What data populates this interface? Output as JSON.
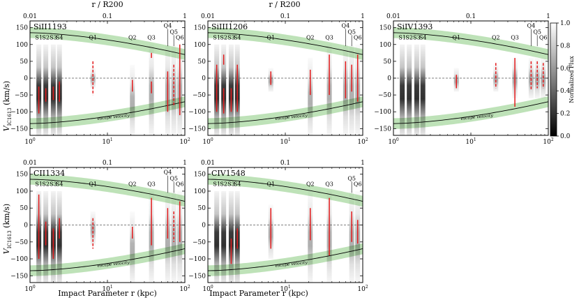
{
  "figure": {
    "y_label_main": "V",
    "y_label_sub": "IC1613",
    "y_label_unit": " (km/s)",
    "x_label": "Impact Parameter r (kpc)",
    "top_axis_label": "r / R200",
    "colorbar_label": "Normalized Flux",
    "escape_label": "escape velocity",
    "colors": {
      "escape_band": "#a8d8a0",
      "curve": "#000000",
      "detection": "#e31a1c",
      "zero_line": "#555555"
    }
  },
  "chart_data": [
    {
      "type": "scatter",
      "title": "SiII1193",
      "xscale": "log",
      "xlim": [
        1,
        100
      ],
      "ylim": [
        -170,
        170
      ],
      "xticks": [
        1,
        10,
        100
      ],
      "xtick_labels": [
        "10^0",
        "10^1",
        "10^2"
      ],
      "yticks": [
        -150,
        -100,
        -50,
        0,
        50,
        100,
        150
      ],
      "top_xticks": [
        0.01,
        0.1,
        1
      ],
      "sightlines": [
        {
          "label": "S1",
          "r": 1.3,
          "v_shade": [
            -170,
            100
          ]
        },
        {
          "label": "S2",
          "r": 1.6,
          "v_shade": [
            -170,
            100
          ]
        },
        {
          "label": "S3",
          "r": 2.0,
          "v_shade": [
            -170,
            100
          ]
        },
        {
          "label": "S4",
          "r": 2.4,
          "v_shade": [
            -170,
            100
          ]
        },
        {
          "label": "Q1",
          "r": 6.5,
          "v_shade": [
            -30,
            30
          ]
        },
        {
          "label": "Q2",
          "r": 21,
          "v_shade": [
            -170,
            40
          ]
        },
        {
          "label": "Q3",
          "r": 37,
          "v_shade": [
            -170,
            100
          ]
        },
        {
          "label": "Q4",
          "r": 60,
          "v_shade": [
            -170,
            100
          ]
        },
        {
          "label": "Q5",
          "r": 72,
          "v_shade": [
            -170,
            100
          ]
        },
        {
          "label": "Q6",
          "r": 86,
          "v_shade": [
            -170,
            100
          ]
        }
      ],
      "detections": [
        {
          "label": "S1",
          "r": 1.3,
          "v": [
            -105,
            -25
          ],
          "style": "solid"
        },
        {
          "label": "S2",
          "r": 1.6,
          "v": [
            -70,
            -30
          ],
          "style": "solid"
        },
        {
          "label": "S3",
          "r": 2.0,
          "v": [
            -65,
            -25
          ],
          "style": "solid"
        },
        {
          "label": "S4",
          "r": 2.4,
          "v": [
            -70,
            -10
          ],
          "style": "solid"
        },
        {
          "label": "Q1",
          "r": 6.5,
          "v": [
            -50,
            50
          ],
          "style": "dashed"
        },
        {
          "label": "Q2",
          "r": 21,
          "v": [
            -40,
            -5
          ],
          "style": "solid"
        },
        {
          "label": "Q3",
          "r": 37,
          "v": [
            -45,
            -10
          ],
          "style": "solid"
        },
        {
          "label": "Q3",
          "r": 37,
          "v": [
            60,
            75
          ],
          "style": "solid"
        },
        {
          "label": "Q4",
          "r": 60,
          "v": [
            -100,
            20
          ],
          "style": "solid"
        },
        {
          "label": "Q5",
          "r": 72,
          "v": [
            -80,
            40
          ],
          "style": "dashed"
        },
        {
          "label": "Q6",
          "r": 86,
          "v": [
            -110,
            100
          ],
          "style": "solid"
        }
      ]
    },
    {
      "type": "scatter",
      "title": "SiIII1206",
      "xscale": "log",
      "xlim": [
        1,
        100
      ],
      "ylim": [
        -170,
        170
      ],
      "xticks": [
        1,
        10,
        100
      ],
      "xtick_labels": [
        "10^0",
        "10^1",
        "10^2"
      ],
      "yticks": [
        -150,
        -100,
        -50,
        0,
        50,
        100,
        150
      ],
      "top_xticks": [
        0.01,
        0.1,
        1
      ],
      "sightlines": [
        {
          "label": "S1",
          "r": 1.3,
          "v_shade": [
            -170,
            100
          ]
        },
        {
          "label": "S2",
          "r": 1.6,
          "v_shade": [
            -170,
            100
          ]
        },
        {
          "label": "S3",
          "r": 2.0,
          "v_shade": [
            -170,
            100
          ]
        },
        {
          "label": "S4",
          "r": 2.4,
          "v_shade": [
            -170,
            100
          ]
        },
        {
          "label": "Q1",
          "r": 6.5,
          "v_shade": [
            -40,
            30
          ]
        },
        {
          "label": "Q2",
          "r": 21,
          "v_shade": [
            -170,
            60
          ]
        },
        {
          "label": "Q3",
          "r": 37,
          "v_shade": [
            -170,
            100
          ]
        },
        {
          "label": "Q4",
          "r": 60,
          "v_shade": [
            -170,
            100
          ]
        },
        {
          "label": "Q5",
          "r": 72,
          "v_shade": [
            -170,
            100
          ]
        },
        {
          "label": "Q6",
          "r": 86,
          "v_shade": [
            -170,
            100
          ]
        }
      ],
      "detections": [
        {
          "label": "S1",
          "r": 1.3,
          "v": [
            -100,
            40
          ],
          "style": "solid"
        },
        {
          "label": "S2",
          "r": 1.6,
          "v": [
            40,
            70
          ],
          "style": "solid"
        },
        {
          "label": "S2",
          "r": 1.6,
          "v": [
            -105,
            -30
          ],
          "style": "solid"
        },
        {
          "label": "S3",
          "r": 2.0,
          "v": [
            -100,
            -30
          ],
          "style": "solid"
        },
        {
          "label": "S4",
          "r": 2.4,
          "v": [
            -100,
            40
          ],
          "style": "solid"
        },
        {
          "label": "Q1",
          "r": 6.5,
          "v": [
            -20,
            20
          ],
          "style": "solid"
        },
        {
          "label": "Q2",
          "r": 21,
          "v": [
            -50,
            25
          ],
          "style": "solid"
        },
        {
          "label": "Q3",
          "r": 37,
          "v": [
            -50,
            70
          ],
          "style": "solid"
        },
        {
          "label": "Q4",
          "r": 60,
          "v": [
            -60,
            50
          ],
          "style": "solid"
        },
        {
          "label": "Q5",
          "r": 72,
          "v": [
            -40,
            40
          ],
          "style": "solid"
        },
        {
          "label": "Q6",
          "r": 86,
          "v": [
            -70,
            70
          ],
          "style": "solid"
        }
      ]
    },
    {
      "type": "scatter",
      "title": "SiIV1393",
      "xscale": "log",
      "xlim": [
        1,
        100
      ],
      "ylim": [
        -170,
        170
      ],
      "xticks": [
        1,
        10,
        100
      ],
      "xtick_labels": [
        "10^0",
        "10^1",
        "10^2"
      ],
      "yticks": [
        -150,
        -100,
        -50,
        0,
        50,
        100,
        150
      ],
      "top_xticks": [
        0.01,
        0.1,
        1
      ],
      "sightlines": [
        {
          "label": "S1",
          "r": 1.3,
          "v_shade": [
            -170,
            100
          ]
        },
        {
          "label": "S2",
          "r": 1.6,
          "v_shade": [
            -170,
            100
          ]
        },
        {
          "label": "S3",
          "r": 2.0,
          "v_shade": [
            -170,
            100
          ]
        },
        {
          "label": "S4",
          "r": 2.4,
          "v_shade": [
            -170,
            100
          ]
        },
        {
          "label": "Q1",
          "r": 6.5,
          "v_shade": [
            -40,
            30
          ]
        },
        {
          "label": "Q2",
          "r": 21,
          "v_shade": [
            -40,
            40
          ]
        },
        {
          "label": "Q3",
          "r": 37,
          "v_shade": [
            -60,
            60
          ]
        },
        {
          "label": "Q4",
          "r": 60,
          "v_shade": [
            -60,
            60
          ]
        },
        {
          "label": "Q5",
          "r": 72,
          "v_shade": [
            -60,
            60
          ]
        },
        {
          "label": "Q6",
          "r": 86,
          "v_shade": [
            -60,
            60
          ]
        }
      ],
      "detections": [
        {
          "label": "Q1",
          "r": 6.5,
          "v": [
            -30,
            10
          ],
          "style": "solid"
        },
        {
          "label": "Q2",
          "r": 21,
          "v": [
            -30,
            45
          ],
          "style": "dashed"
        },
        {
          "label": "Q3",
          "r": 37,
          "v": [
            -85,
            60
          ],
          "style": "solid"
        },
        {
          "label": "Q4",
          "r": 60,
          "v": [
            -35,
            50
          ],
          "style": "dashed"
        },
        {
          "label": "Q5",
          "r": 72,
          "v": [
            -30,
            50
          ],
          "style": "dashed"
        },
        {
          "label": "Q6",
          "r": 86,
          "v": [
            -30,
            45
          ],
          "style": "dashed"
        }
      ]
    },
    {
      "type": "scatter",
      "title": "CII1334",
      "xscale": "log",
      "xlim": [
        1,
        100
      ],
      "ylim": [
        -170,
        170
      ],
      "xticks": [
        1,
        10,
        100
      ],
      "xtick_labels": [
        "10^0",
        "10^1",
        "10^2"
      ],
      "yticks": [
        -150,
        -100,
        -50,
        0,
        50,
        100,
        150
      ],
      "top_xticks": [
        0.01,
        0.1,
        1
      ],
      "sightlines": [
        {
          "label": "S1",
          "r": 1.3,
          "v_shade": [
            -170,
            100
          ]
        },
        {
          "label": "S2",
          "r": 1.6,
          "v_shade": [
            -170,
            100
          ]
        },
        {
          "label": "S3",
          "r": 2.0,
          "v_shade": [
            -170,
            100
          ]
        },
        {
          "label": "S4",
          "r": 2.4,
          "v_shade": [
            -170,
            100
          ]
        },
        {
          "label": "Q1",
          "r": 6.5,
          "v_shade": [
            -60,
            40
          ]
        },
        {
          "label": "Q2",
          "r": 21,
          "v_shade": [
            -170,
            40
          ]
        },
        {
          "label": "Q3",
          "r": 37,
          "v_shade": [
            -170,
            100
          ]
        },
        {
          "label": "Q4",
          "r": 60,
          "v_shade": [
            -170,
            100
          ]
        },
        {
          "label": "Q5",
          "r": 72,
          "v_shade": [
            -170,
            100
          ]
        },
        {
          "label": "Q6",
          "r": 86,
          "v_shade": [
            -170,
            100
          ]
        }
      ],
      "detections": [
        {
          "label": "S1",
          "r": 1.3,
          "v": [
            -100,
            90
          ],
          "style": "solid"
        },
        {
          "label": "S2",
          "r": 1.6,
          "v": [
            -60,
            10
          ],
          "style": "solid"
        },
        {
          "label": "S3",
          "r": 2.0,
          "v": [
            -100,
            -10
          ],
          "style": "solid"
        },
        {
          "label": "S4",
          "r": 2.4,
          "v": [
            -40,
            20
          ],
          "style": "solid"
        },
        {
          "label": "Q1",
          "r": 6.5,
          "v": [
            -70,
            20
          ],
          "style": "dashed"
        },
        {
          "label": "Q2",
          "r": 21,
          "v": [
            -40,
            -5
          ],
          "style": "solid"
        },
        {
          "label": "Q3",
          "r": 37,
          "v": [
            -60,
            80
          ],
          "style": "solid"
        },
        {
          "label": "Q4",
          "r": 60,
          "v": [
            -40,
            50
          ],
          "style": "solid"
        },
        {
          "label": "Q5",
          "r": 72,
          "v": [
            -50,
            40
          ],
          "style": "dashed"
        },
        {
          "label": "Q6",
          "r": 86,
          "v": [
            -50,
            70
          ],
          "style": "solid"
        }
      ]
    },
    {
      "type": "scatter",
      "title": "CIV1548",
      "xscale": "log",
      "xlim": [
        1,
        100
      ],
      "ylim": [
        -170,
        170
      ],
      "xticks": [
        1,
        10,
        100
      ],
      "xtick_labels": [
        "10^0",
        "10^1",
        "10^2"
      ],
      "yticks": [
        -150,
        -100,
        -50,
        0,
        50,
        100,
        150
      ],
      "top_xticks": [
        0.01,
        0.1,
        1
      ],
      "sightlines": [
        {
          "label": "S1",
          "r": 1.3,
          "v_shade": [
            -170,
            100
          ]
        },
        {
          "label": "S2",
          "r": 1.6,
          "v_shade": [
            -170,
            100
          ]
        },
        {
          "label": "S3",
          "r": 2.0,
          "v_shade": [
            -170,
            100
          ]
        },
        {
          "label": "S4",
          "r": 2.4,
          "v_shade": [
            -170,
            100
          ]
        },
        {
          "label": "Q1",
          "r": 6.5,
          "v_shade": [
            -100,
            60
          ]
        },
        {
          "label": "Q2",
          "r": 21,
          "v_shade": [
            -170,
            100
          ]
        },
        {
          "label": "Q3",
          "r": 37,
          "v_shade": [
            -170,
            100
          ]
        },
        {
          "label": "Q5",
          "r": 72,
          "v_shade": [
            -170,
            100
          ]
        },
        {
          "label": "Q6",
          "r": 86,
          "v_shade": [
            -170,
            100
          ]
        }
      ],
      "detections": [
        {
          "label": "S3",
          "r": 2.0,
          "v": [
            -115,
            -40
          ],
          "style": "solid"
        },
        {
          "label": "S4",
          "r": 2.4,
          "v": [
            -70,
            -10
          ],
          "style": "solid"
        },
        {
          "label": "Q1",
          "r": 6.5,
          "v": [
            -70,
            50
          ],
          "style": "solid"
        },
        {
          "label": "Q2",
          "r": 21,
          "v": [
            -45,
            50
          ],
          "style": "solid"
        },
        {
          "label": "Q3",
          "r": 37,
          "v": [
            -90,
            80
          ],
          "style": "solid"
        },
        {
          "label": "Q5",
          "r": 72,
          "v": [
            -50,
            40
          ],
          "style": "solid"
        },
        {
          "label": "Q6",
          "r": 86,
          "v": [
            -55,
            15
          ],
          "style": "solid"
        }
      ]
    }
  ],
  "colorbar": {
    "ticks": [
      0.0,
      0.2,
      0.4,
      0.6,
      0.8,
      1.0
    ],
    "tick_labels": [
      "0.0",
      "0.2",
      "0.4",
      "0.6",
      "0.8",
      "1.0"
    ]
  }
}
